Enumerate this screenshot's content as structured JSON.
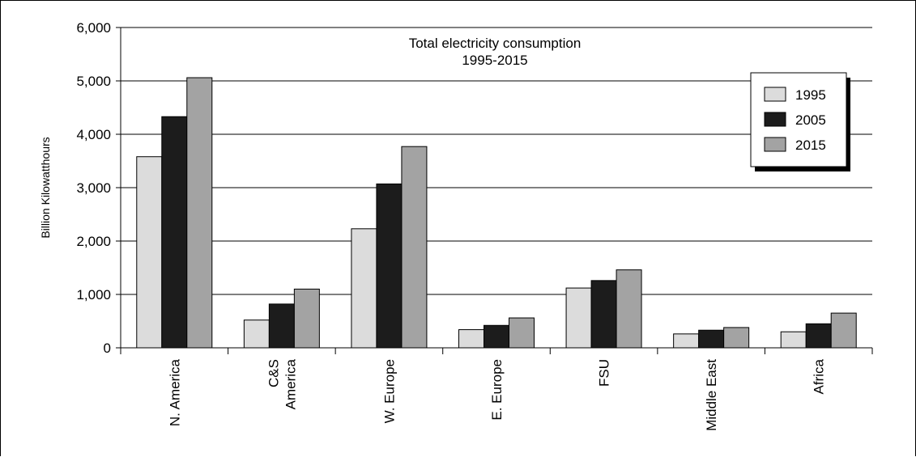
{
  "chart_data": {
    "type": "bar",
    "title_lines": [
      "Total electricity consumption",
      "1995-2015"
    ],
    "ylabel": "Billion Kilowatthours",
    "xlabel": "",
    "ylim": [
      0,
      6000
    ],
    "yticks": [
      0,
      1000,
      2000,
      3000,
      4000,
      5000,
      6000
    ],
    "ytick_labels": [
      "0",
      "1,000",
      "2,000",
      "3,000",
      "4,000",
      "5,000",
      "6,000"
    ],
    "grid": true,
    "legend_position": "top-right",
    "categories": [
      [
        "N. America"
      ],
      [
        "C&S",
        "America"
      ],
      [
        "W. Europe"
      ],
      [
        "E. Europe"
      ],
      [
        "FSU"
      ],
      [
        "Middle East"
      ],
      [
        "Africa"
      ]
    ],
    "series": [
      {
        "name": "1995",
        "color": "#dcdcdc",
        "values": [
          3580,
          520,
          2230,
          340,
          1120,
          260,
          300
        ]
      },
      {
        "name": "2005",
        "color": "#1c1c1c",
        "values": [
          4330,
          820,
          3070,
          420,
          1260,
          330,
          450
        ]
      },
      {
        "name": "2015",
        "color": "#a3a3a3",
        "values": [
          5060,
          1100,
          3770,
          560,
          1460,
          380,
          650
        ]
      }
    ]
  }
}
